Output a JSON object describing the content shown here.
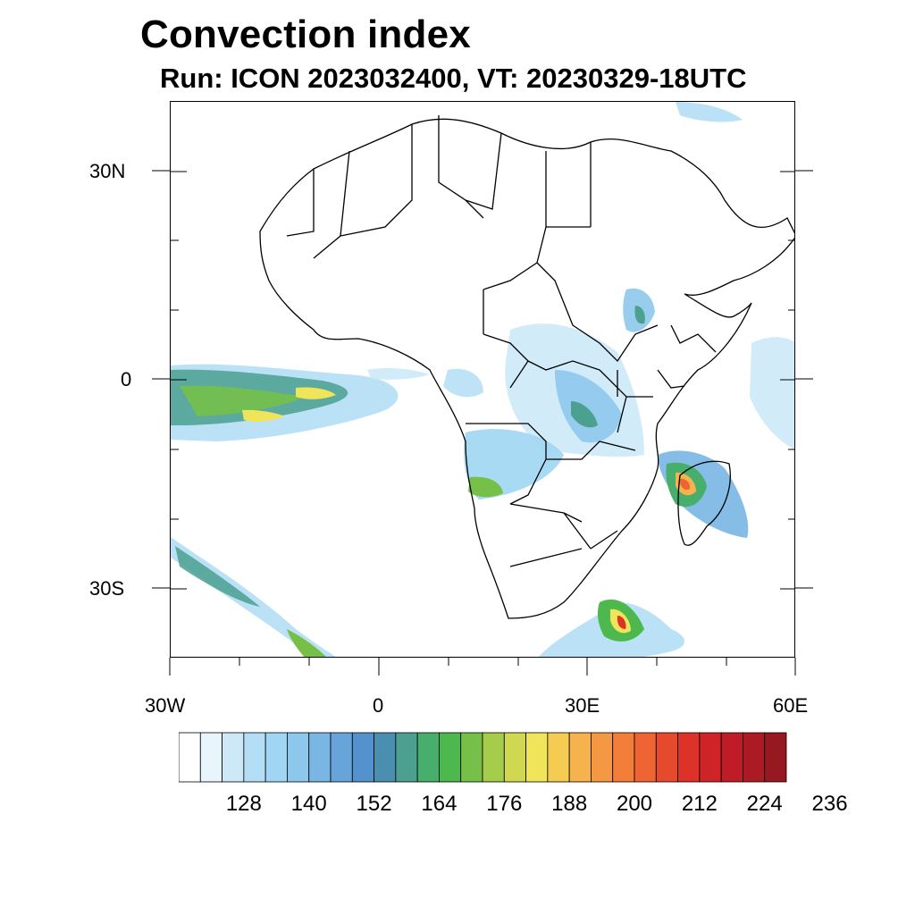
{
  "header": {
    "title": "Convection index",
    "subtitle": "Run: ICON 2023032400,  VT: 20230329-18UTC"
  },
  "axes": {
    "lat_labels": [
      "30N",
      "0",
      "30S"
    ],
    "lon_labels": [
      "30W",
      "0",
      "30E",
      "60E"
    ]
  },
  "colorbar": {
    "labels": [
      "128",
      "140",
      "152",
      "164",
      "176",
      "188",
      "200",
      "212",
      "224",
      "236"
    ],
    "colors": [
      "#ffffff",
      "#e8f5fc",
      "#cde9f8",
      "#b4def5",
      "#a0d6f3",
      "#8dc8ec",
      "#79b6e3",
      "#66a4da",
      "#5492cd",
      "#4b8fb0",
      "#4ba08f",
      "#48ae6c",
      "#4cb84e",
      "#76c04a",
      "#a6cc4c",
      "#cfd850",
      "#f0e45a",
      "#f6cb52",
      "#f6b24c",
      "#f59844",
      "#f27e3a",
      "#ee6432",
      "#e64a2c",
      "#dd3228",
      "#ce2428",
      "#be1c26",
      "#ac1a24",
      "#961820"
    ]
  },
  "colors": {
    "coast": "#000000",
    "light_blue": "#b4def5",
    "mid_blue": "#79b6e3",
    "green": "#4ba08f",
    "yellow": "#f0e45a",
    "orange": "#f59844",
    "red": "#dd3228"
  }
}
